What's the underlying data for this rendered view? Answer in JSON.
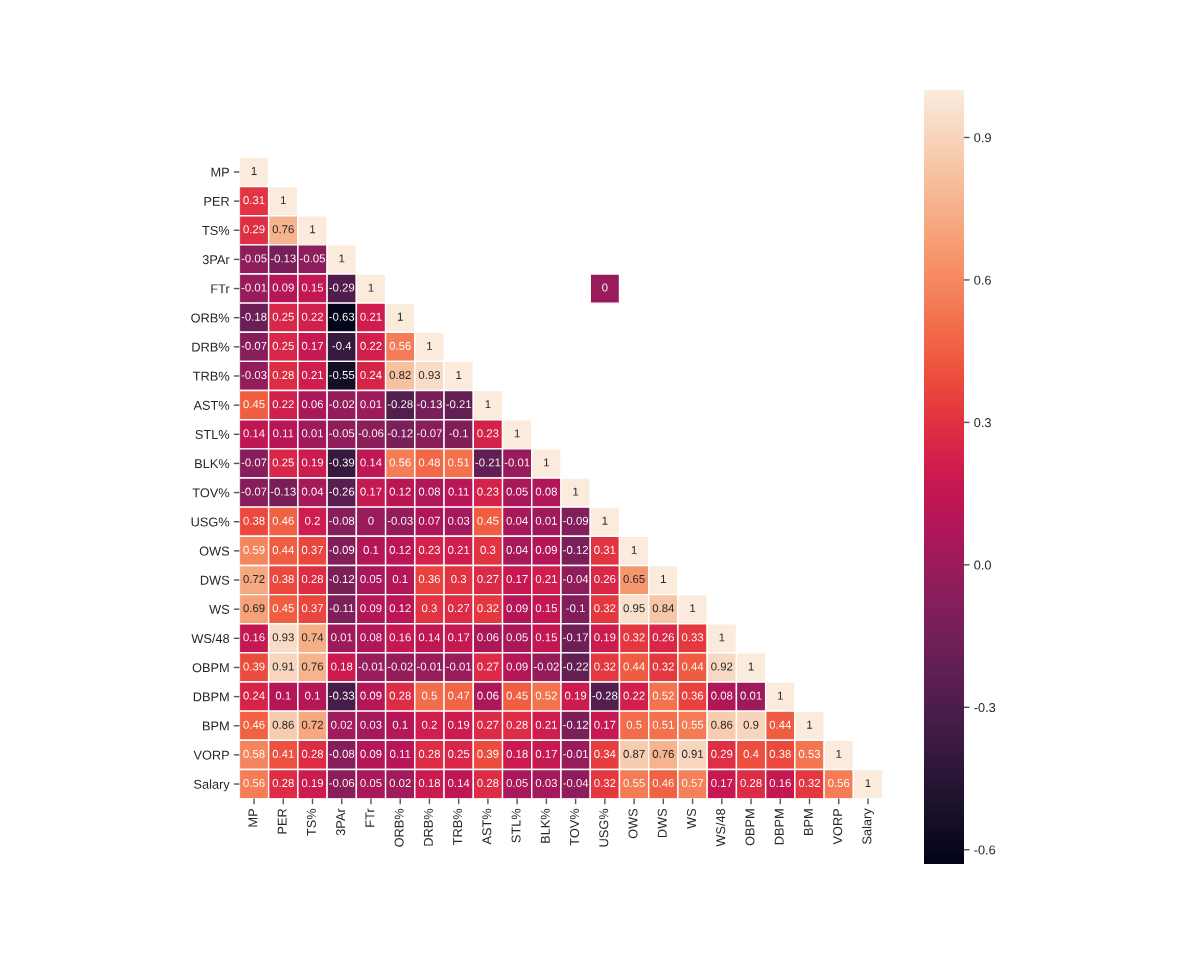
{
  "chart_data": {
    "type": "heatmap",
    "categories": [
      "MP",
      "PER",
      "TS%",
      "3PAr",
      "FTr",
      "ORB%",
      "DRB%",
      "TRB%",
      "AST%",
      "STL%",
      "BLK%",
      "TOV%",
      "USG%",
      "OWS",
      "DWS",
      "WS",
      "WS/48",
      "OBPM",
      "DBPM",
      "BPM",
      "VORP",
      "Salary"
    ],
    "y_categories": [
      "MP",
      "PER",
      "TS%",
      "3PAr",
      "FTr",
      "ORB%",
      "DRB%",
      "TRB%",
      "AST%",
      "STL%",
      "BLK%",
      "TOV%",
      "USG%",
      "OWS",
      "DWS",
      "WS",
      "WS/48",
      "OBPM",
      "DBPM",
      "BPM",
      "VORP",
      "Salary"
    ],
    "cells": [
      [
        1,
        null,
        null,
        null,
        null,
        null,
        null,
        null,
        null,
        null,
        null,
        null,
        null,
        null,
        null,
        null,
        null,
        null,
        null,
        null,
        null,
        null
      ],
      [
        0.31,
        1,
        null,
        null,
        null,
        null,
        null,
        null,
        null,
        null,
        null,
        null,
        null,
        null,
        null,
        null,
        null,
        null,
        null,
        null,
        null,
        null
      ],
      [
        0.29,
        0.76,
        1,
        null,
        null,
        null,
        null,
        null,
        null,
        null,
        null,
        null,
        null,
        null,
        null,
        null,
        null,
        null,
        null,
        null,
        null,
        null
      ],
      [
        -0.05,
        -0.13,
        -0.05,
        1,
        null,
        null,
        null,
        null,
        null,
        null,
        null,
        null,
        null,
        null,
        null,
        null,
        null,
        null,
        null,
        null,
        null,
        null
      ],
      [
        -0.01,
        0.09,
        0.15,
        -0.29,
        1,
        null,
        null,
        null,
        null,
        null,
        null,
        null,
        0,
        null,
        null,
        null,
        null,
        null,
        null,
        null,
        null,
        null
      ],
      [
        -0.18,
        0.25,
        0.22,
        -0.63,
        0.21,
        1,
        null,
        null,
        null,
        null,
        null,
        null,
        null,
        null,
        null,
        null,
        null,
        null,
        null,
        null,
        null,
        null
      ],
      [
        -0.07,
        0.25,
        0.17,
        -0.4,
        0.22,
        0.56,
        1,
        null,
        null,
        null,
        null,
        null,
        null,
        null,
        null,
        null,
        null,
        null,
        null,
        null,
        null,
        null
      ],
      [
        -0.03,
        0.28,
        0.21,
        -0.55,
        0.24,
        0.82,
        0.93,
        1,
        null,
        null,
        null,
        null,
        null,
        null,
        null,
        null,
        null,
        null,
        null,
        null,
        null,
        null
      ],
      [
        0.45,
        0.22,
        0.06,
        -0.02,
        0.01,
        -0.28,
        -0.13,
        -0.21,
        1,
        null,
        null,
        null,
        null,
        null,
        null,
        null,
        null,
        null,
        null,
        null,
        null,
        null
      ],
      [
        0.14,
        0.11,
        0.01,
        -0.05,
        -0.06,
        -0.12,
        -0.07,
        -0.1,
        0.23,
        1,
        null,
        null,
        null,
        null,
        null,
        null,
        null,
        null,
        null,
        null,
        null,
        null
      ],
      [
        -0.07,
        0.25,
        0.19,
        -0.39,
        0.14,
        0.56,
        0.48,
        0.51,
        -0.21,
        -0.01,
        1,
        null,
        null,
        null,
        null,
        null,
        null,
        null,
        null,
        null,
        null,
        null
      ],
      [
        -0.07,
        -0.13,
        0.04,
        -0.26,
        0.17,
        0.12,
        0.08,
        0.11,
        0.23,
        0.05,
        0.08,
        1,
        null,
        null,
        null,
        null,
        null,
        null,
        null,
        null,
        null,
        null
      ],
      [
        0.38,
        0.46,
        0.2,
        -0.08,
        0,
        -0.03,
        0.07,
        0.03,
        0.45,
        0.04,
        0.01,
        -0.09,
        1,
        null,
        null,
        null,
        null,
        null,
        null,
        null,
        null,
        null
      ],
      [
        0.59,
        0.44,
        0.37,
        -0.09,
        0.1,
        0.12,
        0.23,
        0.21,
        0.3,
        0.04,
        0.09,
        -0.12,
        0.31,
        1,
        null,
        null,
        null,
        null,
        null,
        null,
        null,
        null
      ],
      [
        0.72,
        0.38,
        0.28,
        -0.12,
        0.05,
        0.1,
        0.36,
        0.3,
        0.27,
        0.17,
        0.21,
        -0.04,
        0.26,
        0.65,
        1,
        null,
        null,
        null,
        null,
        null,
        null,
        null
      ],
      [
        0.69,
        0.45,
        0.37,
        -0.11,
        0.09,
        0.12,
        0.3,
        0.27,
        0.32,
        0.09,
        0.15,
        -0.1,
        0.32,
        0.95,
        0.84,
        1,
        null,
        null,
        null,
        null,
        null,
        null
      ],
      [
        0.16,
        0.93,
        0.74,
        0.01,
        0.08,
        0.16,
        0.14,
        0.17,
        0.06,
        0.05,
        0.15,
        -0.17,
        0.19,
        0.32,
        0.26,
        0.33,
        1,
        null,
        null,
        null,
        null,
        null
      ],
      [
        0.39,
        0.91,
        0.76,
        0.18,
        -0.01,
        -0.02,
        -0.01,
        -0.01,
        0.27,
        0.09,
        -0.02,
        -0.22,
        0.32,
        0.44,
        0.32,
        0.44,
        0.92,
        1,
        null,
        null,
        null,
        null
      ],
      [
        0.24,
        0.1,
        0.1,
        -0.33,
        0.09,
        0.28,
        0.5,
        0.47,
        0.06,
        0.45,
        0.52,
        0.19,
        -0.28,
        0.22,
        0.52,
        0.36,
        0.08,
        0.01,
        1,
        null,
        null,
        null
      ],
      [
        0.46,
        0.86,
        0.72,
        0.02,
        0.03,
        0.1,
        0.2,
        0.19,
        0.27,
        0.28,
        0.21,
        -0.12,
        0.17,
        0.5,
        0.51,
        0.55,
        0.86,
        0.9,
        0.44,
        1,
        null,
        null
      ],
      [
        0.58,
        0.41,
        0.28,
        -0.08,
        0.09,
        0.11,
        0.28,
        0.25,
        0.39,
        0.18,
        0.17,
        -0.01,
        0.34,
        0.87,
        0.76,
        0.91,
        0.29,
        0.4,
        0.38,
        0.53,
        1,
        null
      ],
      [
        0.56,
        0.28,
        0.19,
        -0.06,
        0.05,
        0.02,
        0.18,
        0.14,
        0.28,
        0.05,
        0.03,
        -0.04,
        0.32,
        0.55,
        0.46,
        0.57,
        0.17,
        0.28,
        0.16,
        0.32,
        0.56,
        1
      ]
    ],
    "data_labels": true,
    "clim": [
      -0.63,
      1
    ],
    "cticks": [
      -0.6,
      -0.3,
      {
        "value": 0,
        "label": "0.0"
      },
      0.3,
      0.6,
      0.9
    ]
  }
}
